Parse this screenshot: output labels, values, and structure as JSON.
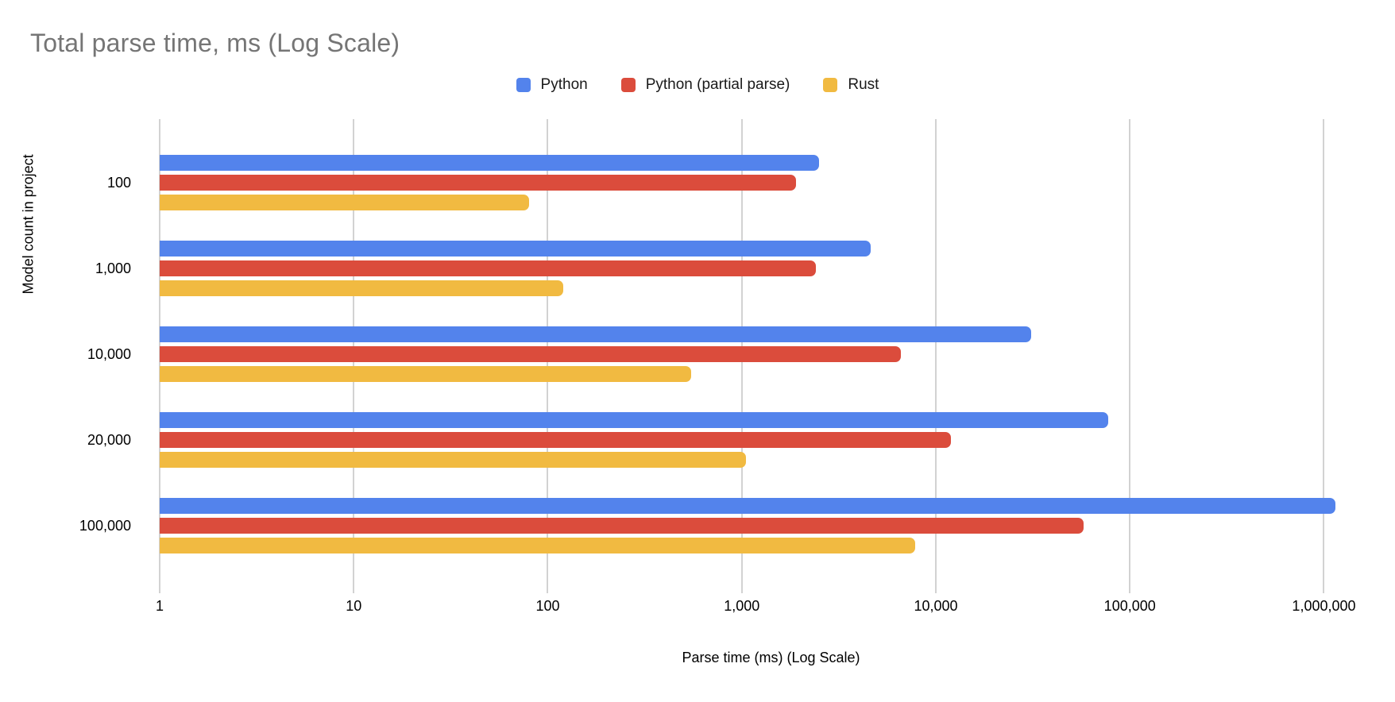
{
  "title": "Total parse time, ms (Log Scale)",
  "colors": {
    "title_gray": "#757575",
    "gridline": "#d2d2d2",
    "python_blue": "#5383EC",
    "python_partial_red": "#DB4C3C",
    "rust_yellow": "#F1BA41"
  },
  "chart_data": {
    "type": "bar",
    "orientation": "horizontal",
    "title": "Total parse time, ms (Log Scale)",
    "xlabel": "Parse time (ms) (Log Scale)",
    "ylabel": "Model count in project",
    "log_scale_x": true,
    "grid": true,
    "legend_position": "top",
    "categories": [
      "100",
      "1,000",
      "10,000",
      "20,000",
      "100,000"
    ],
    "series": [
      {
        "name": "Python",
        "color": "#5383EC",
        "values": [
          2500,
          4600,
          31000,
          77000,
          1150000
        ]
      },
      {
        "name": "Python (partial parse)",
        "color": "#DB4C3C",
        "values": [
          1900,
          2400,
          6600,
          12000,
          58000
        ]
      },
      {
        "name": "Rust",
        "color": "#F1BA41",
        "values": [
          80,
          120,
          550,
          1050,
          7800
        ]
      }
    ],
    "x_ticks": [
      "1",
      "10",
      "100",
      "1,000",
      "10,000",
      "100,000",
      "1,000,000"
    ],
    "x_tick_values": [
      1,
      10,
      100,
      1000,
      10000,
      100000,
      1000000
    ],
    "xlim": [
      1,
      2000000
    ]
  }
}
